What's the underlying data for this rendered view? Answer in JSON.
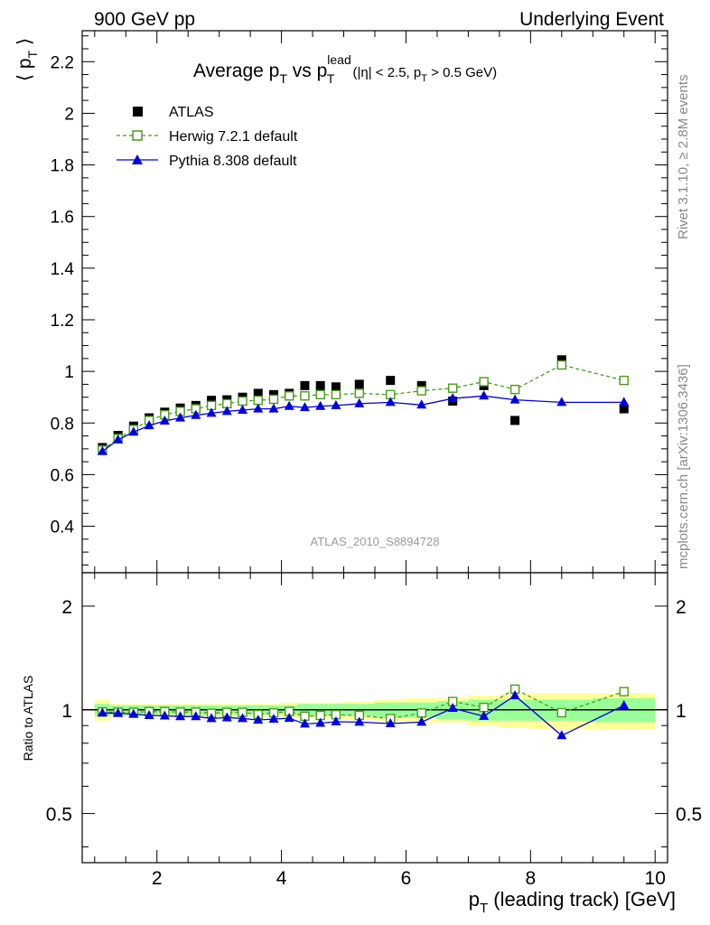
{
  "header": {
    "left_label": "900 GeV pp",
    "right_label": "Underlying Event"
  },
  "side": {
    "rivet_label": "Rivet 3.1.10, ≥ 2.8M events",
    "mcplots_label": "mcplots.cern.ch [arXiv:1306.3436]"
  },
  "colors": {
    "atlas": "#000000",
    "herwig": "#4a9a1a",
    "pythia": "#0000e0",
    "band_inner": "#99ff99",
    "band_outer": "#ffff99",
    "analysis_label": "#999999"
  },
  "chart_data": [
    {
      "type": "scatter",
      "panel": "main",
      "title_parts": {
        "pre": "Average p",
        "sub1": "T",
        "mid": " vs p",
        "sup": "lead",
        "sub2": "T",
        "cut_pre": " (|η| < 2.5, p",
        "cut_sub": "T",
        "cut_post": " > 0.5 GeV)"
      },
      "ylabel_parts": {
        "pre": "⟨ p",
        "sub": "T",
        "post": " ⟩"
      },
      "analysis_label": "ATLAS_2010_S8894728",
      "xlim": [
        0.8,
        10.2
      ],
      "ylim": [
        0.22,
        2.32
      ],
      "yticks": [
        0.4,
        0.6,
        0.8,
        1,
        1.2,
        1.4,
        1.6,
        1.8,
        2,
        2.2
      ],
      "ytick_labels": [
        "0.4",
        "0.6",
        "0.8",
        "1",
        "1.2",
        "1.4",
        "1.6",
        "1.8",
        "2",
        "2.2"
      ],
      "legend_position": "top-left",
      "series": [
        {
          "name": "ATLAS",
          "style": "black-square",
          "x": [
            1.125,
            1.375,
            1.625,
            1.875,
            2.125,
            2.375,
            2.625,
            2.875,
            3.125,
            3.375,
            3.625,
            3.875,
            4.125,
            4.375,
            4.625,
            4.875,
            5.25,
            5.75,
            6.25,
            6.75,
            7.25,
            7.75,
            8.5,
            9.5
          ],
          "values": [
            0.705,
            0.752,
            0.788,
            0.82,
            0.842,
            0.858,
            0.868,
            0.888,
            0.89,
            0.9,
            0.915,
            0.91,
            0.915,
            0.945,
            0.945,
            0.94,
            0.95,
            0.965,
            0.945,
            0.885,
            0.945,
            0.81,
            1.045,
            0.855
          ]
        },
        {
          "name": "Herwig 7.2.1 default",
          "style": "green-open-square-dashed",
          "x": [
            1.125,
            1.375,
            1.625,
            1.875,
            2.125,
            2.375,
            2.625,
            2.875,
            3.125,
            3.375,
            3.625,
            3.875,
            4.125,
            4.375,
            4.625,
            4.875,
            5.25,
            5.75,
            6.25,
            6.75,
            7.25,
            7.75,
            8.5,
            9.5
          ],
          "values": [
            0.695,
            0.74,
            0.775,
            0.81,
            0.832,
            0.845,
            0.855,
            0.868,
            0.875,
            0.885,
            0.888,
            0.892,
            0.905,
            0.905,
            0.91,
            0.91,
            0.915,
            0.91,
            0.925,
            0.935,
            0.96,
            0.93,
            1.025,
            0.965
          ]
        },
        {
          "name": "Pythia 8.308 default",
          "style": "blue-triangle-solid",
          "x": [
            1.125,
            1.375,
            1.625,
            1.875,
            2.125,
            2.375,
            2.625,
            2.875,
            3.125,
            3.375,
            3.625,
            3.875,
            4.125,
            4.375,
            4.625,
            4.875,
            5.25,
            5.75,
            6.25,
            6.75,
            7.25,
            7.75,
            8.5,
            9.5
          ],
          "values": [
            0.69,
            0.735,
            0.765,
            0.79,
            0.808,
            0.82,
            0.83,
            0.838,
            0.845,
            0.85,
            0.855,
            0.855,
            0.865,
            0.86,
            0.865,
            0.868,
            0.875,
            0.88,
            0.87,
            0.895,
            0.905,
            0.89,
            0.88,
            0.88
          ]
        }
      ]
    },
    {
      "type": "line",
      "panel": "ratio",
      "ylabel": "Ratio to ATLAS",
      "xlabel_parts": {
        "pre": "p",
        "sub": "T",
        "post": " (leading track) [GeV]"
      },
      "xlim": [
        0.8,
        10.2
      ],
      "xticks": [
        2,
        4,
        6,
        8,
        10
      ],
      "xtick_labels": [
        "2",
        "4",
        "6",
        "8",
        "10"
      ],
      "yscale": "log",
      "ylim": [
        0.36,
        2.5
      ],
      "yticks": [
        0.5,
        1,
        2
      ],
      "ytick_labels": [
        "0.5",
        "1",
        "2"
      ],
      "bin_edges": [
        1.0,
        1.25,
        1.5,
        1.75,
        2.0,
        2.25,
        2.5,
        2.75,
        3.0,
        3.25,
        3.5,
        3.75,
        4.0,
        4.25,
        4.5,
        4.75,
        5.0,
        5.5,
        6.0,
        6.5,
        7.0,
        7.5,
        8.0,
        9.0,
        10.0
      ],
      "band_inner_halfwidth": [
        0.04,
        0.03,
        0.03,
        0.03,
        0.03,
        0.03,
        0.03,
        0.03,
        0.03,
        0.03,
        0.03,
        0.03,
        0.03,
        0.04,
        0.04,
        0.04,
        0.04,
        0.05,
        0.05,
        0.06,
        0.07,
        0.07,
        0.07,
        0.08,
        0.08
      ],
      "band_outer_halfwidth": [
        0.07,
        0.04,
        0.04,
        0.04,
        0.04,
        0.04,
        0.04,
        0.04,
        0.04,
        0.04,
        0.04,
        0.04,
        0.05,
        0.05,
        0.05,
        0.05,
        0.06,
        0.07,
        0.08,
        0.08,
        0.1,
        0.11,
        0.12,
        0.12,
        0.12
      ],
      "series": [
        {
          "name": "Herwig 7.2.1 default",
          "x": [
            1.125,
            1.375,
            1.625,
            1.875,
            2.125,
            2.375,
            2.625,
            2.875,
            3.125,
            3.375,
            3.625,
            3.875,
            4.125,
            4.375,
            4.625,
            4.875,
            5.25,
            5.75,
            6.25,
            6.75,
            7.25,
            7.75,
            8.5,
            9.5
          ],
          "values": [
            0.986,
            0.984,
            0.984,
            0.988,
            0.988,
            0.985,
            0.985,
            0.977,
            0.983,
            0.983,
            0.97,
            0.98,
            0.989,
            0.958,
            0.963,
            0.968,
            0.963,
            0.943,
            0.979,
            1.057,
            1.016,
            1.148,
            0.981,
            1.129
          ]
        },
        {
          "name": "Pythia 8.308 default",
          "x": [
            1.125,
            1.375,
            1.625,
            1.875,
            2.125,
            2.375,
            2.625,
            2.875,
            3.125,
            3.375,
            3.625,
            3.875,
            4.125,
            4.375,
            4.625,
            4.875,
            5.25,
            5.75,
            6.25,
            6.75,
            7.25,
            7.75,
            8.5,
            9.5
          ],
          "values": [
            0.979,
            0.977,
            0.971,
            0.963,
            0.96,
            0.956,
            0.956,
            0.944,
            0.949,
            0.944,
            0.934,
            0.94,
            0.945,
            0.91,
            0.915,
            0.923,
            0.921,
            0.912,
            0.921,
            1.011,
            0.958,
            1.099,
            0.842,
            1.029
          ]
        }
      ]
    }
  ]
}
